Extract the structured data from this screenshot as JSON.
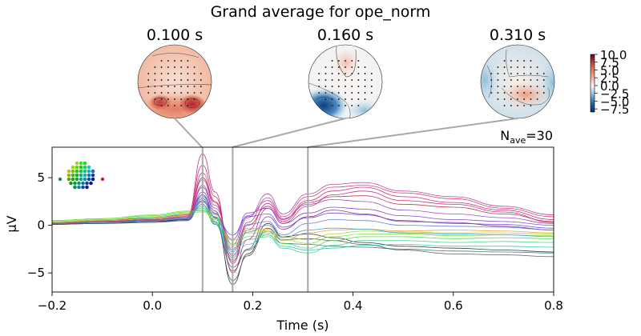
{
  "figure": {
    "title": "Grand average for ope_norm",
    "nave_label": "N",
    "nave_sub": "ave",
    "nave_value": "=30"
  },
  "topomaps": [
    {
      "time_label": "0.100 s",
      "time": 0.1
    },
    {
      "time_label": "0.160 s",
      "time": 0.16
    },
    {
      "time_label": "0.310 s",
      "time": 0.31
    }
  ],
  "colorbar": {
    "ticks": [
      "10.0",
      "7.5",
      "5.0",
      "2.5",
      "0.0",
      "−2.5",
      "−5.0",
      "−7.5"
    ],
    "colormap": "RdBu_r"
  },
  "colors": {
    "line_magenta": "#c8287a",
    "line_purple": "#7a3fd4",
    "line_green": "#4fd84a",
    "line_cyan": "#2fc6b6",
    "line_dark": "#333333",
    "marker": "#a8a8a8"
  },
  "chart_data": {
    "type": "line",
    "title": "Grand average for ope_norm",
    "xlabel": "Time (s)",
    "ylabel": "µV",
    "xlim": [
      -0.2,
      0.8
    ],
    "ylim": [
      -7,
      8.2
    ],
    "x_ticks": [
      -0.2,
      0.0,
      0.2,
      0.4,
      0.6,
      0.8
    ],
    "x_tick_labels": [
      "−0.2",
      "0.0",
      "0.2",
      "0.4",
      "0.6",
      "0.8"
    ],
    "y_ticks": [
      -5,
      0,
      5
    ],
    "y_tick_labels": [
      "−5",
      "0",
      "5"
    ],
    "grid": false,
    "x": [
      -0.2,
      -0.1,
      0.0,
      0.07,
      0.1,
      0.125,
      0.16,
      0.19,
      0.23,
      0.26,
      0.31,
      0.36,
      0.42,
      0.5,
      0.6,
      0.7,
      0.8
    ],
    "series": [
      {
        "color": "#c8287a",
        "values": [
          0.3,
          0.5,
          0.7,
          1.0,
          7.5,
          3.5,
          -5.0,
          -1.5,
          1.8,
          0.2,
          2.0,
          3.2,
          3.6,
          2.6,
          2.2,
          1.4,
          0.3
        ]
      },
      {
        "color": "#c8287a",
        "values": [
          0.3,
          0.5,
          0.8,
          1.1,
          6.3,
          3.0,
          -4.0,
          -0.5,
          2.3,
          0.6,
          2.6,
          3.6,
          4.0,
          3.0,
          2.4,
          1.6,
          0.6
        ]
      },
      {
        "color": "#d43a6a",
        "values": [
          0.2,
          0.4,
          0.6,
          0.9,
          5.5,
          2.5,
          -3.2,
          0.3,
          2.9,
          0.9,
          3.0,
          4.0,
          4.2,
          3.4,
          2.8,
          1.8,
          0.9
        ]
      },
      {
        "color": "#b33fa0",
        "values": [
          0.2,
          0.4,
          0.6,
          0.8,
          4.8,
          2.1,
          -2.6,
          0.8,
          3.3,
          1.2,
          3.3,
          4.3,
          4.5,
          3.6,
          3.0,
          2.0,
          1.1
        ]
      },
      {
        "color": "#9a45c8",
        "values": [
          0.3,
          0.4,
          0.5,
          0.7,
          4.2,
          1.8,
          -2.0,
          1.0,
          2.6,
          0.7,
          2.2,
          2.7,
          2.5,
          1.6,
          1.2,
          0.8,
          0.2
        ]
      },
      {
        "color": "#7a3fd4",
        "values": [
          0.3,
          0.4,
          0.5,
          0.6,
          3.5,
          1.2,
          -1.5,
          1.3,
          1.8,
          0.2,
          1.3,
          1.9,
          1.7,
          1.0,
          0.6,
          0.4,
          0.0
        ]
      },
      {
        "color": "#6a40e0",
        "values": [
          0.2,
          0.3,
          0.4,
          0.5,
          2.8,
          0.8,
          -1.0,
          0.9,
          1.2,
          -0.2,
          0.8,
          1.3,
          1.1,
          0.5,
          0.2,
          0.1,
          -0.3
        ]
      },
      {
        "color": "#8a2f7a",
        "values": [
          0.1,
          0.3,
          0.5,
          0.7,
          4.0,
          1.5,
          -4.8,
          -2.5,
          0.9,
          -0.4,
          0.9,
          1.6,
          1.2,
          0.4,
          0.3,
          -0.1,
          -0.5
        ]
      },
      {
        "color": "#333333",
        "values": [
          0.1,
          0.2,
          0.4,
          0.6,
          3.2,
          0.8,
          -6.2,
          -3.0,
          0.2,
          -1.2,
          -0.9,
          -1.3,
          -1.8,
          -2.2,
          -2.4,
          -2.6,
          -2.8
        ]
      },
      {
        "color": "#555555",
        "values": [
          0.1,
          0.2,
          0.3,
          0.5,
          2.6,
          0.4,
          -5.8,
          -3.2,
          -0.3,
          -1.5,
          -1.4,
          -1.6,
          -2.0,
          -2.6,
          -3.0,
          -3.1,
          -3.3
        ]
      },
      {
        "color": "#2f7a6a",
        "values": [
          0.2,
          0.3,
          0.5,
          0.7,
          2.2,
          0.1,
          -4.4,
          -2.6,
          -0.6,
          -1.9,
          -2.0,
          -2.2,
          -2.3,
          -2.5,
          -2.7,
          -2.8,
          -2.9
        ]
      },
      {
        "color": "#2fc6b6",
        "values": [
          0.3,
          0.4,
          0.6,
          0.9,
          2.0,
          0.2,
          -3.6,
          -2.0,
          -1.0,
          -2.2,
          -2.6,
          -2.4,
          -2.1,
          -2.0,
          -2.2,
          -2.2,
          -2.3
        ]
      },
      {
        "color": "#3dd08a",
        "values": [
          0.4,
          0.6,
          0.8,
          1.2,
          1.8,
          0.3,
          -3.0,
          -1.5,
          -1.2,
          -2.4,
          -2.9,
          -2.1,
          -1.6,
          -1.6,
          -1.8,
          -1.7,
          -1.8
        ]
      },
      {
        "color": "#4fd84a",
        "values": [
          0.5,
          0.7,
          1.0,
          1.4,
          1.6,
          0.6,
          -2.4,
          -1.2,
          -1.0,
          -1.9,
          -2.4,
          -1.6,
          -1.2,
          -1.2,
          -1.4,
          -1.3,
          -1.4
        ]
      },
      {
        "color": "#7ae23a",
        "values": [
          0.5,
          0.7,
          1.1,
          1.5,
          1.5,
          0.9,
          -2.0,
          -0.8,
          -0.8,
          -1.5,
          -1.9,
          -1.2,
          -0.9,
          -0.9,
          -1.1,
          -1.0,
          -1.1
        ]
      },
      {
        "color": "#a0d830",
        "values": [
          0.4,
          0.6,
          0.9,
          1.3,
          1.4,
          0.7,
          -1.6,
          -0.5,
          -0.6,
          -1.2,
          -1.5,
          -0.9,
          -0.6,
          -0.7,
          -0.8,
          -0.8,
          -0.9
        ]
      },
      {
        "color": "#e6a030",
        "values": [
          0.3,
          0.5,
          0.7,
          1.0,
          2.4,
          1.1,
          -2.2,
          -0.3,
          -0.4,
          -1.6,
          -0.8,
          -0.5,
          -0.4,
          -0.6,
          -0.5,
          -0.6,
          -0.8
        ]
      },
      {
        "color": "#5a7ae8",
        "values": [
          0.2,
          0.4,
          0.6,
          0.8,
          3.0,
          1.3,
          -2.8,
          0.1,
          0.4,
          -1.0,
          0.2,
          0.6,
          0.5,
          0.0,
          -0.1,
          -0.2,
          -0.5
        ]
      },
      {
        "color": "#3a9ae0",
        "values": [
          0.2,
          0.3,
          0.5,
          0.7,
          2.5,
          0.9,
          -3.4,
          -0.7,
          0.0,
          -1.3,
          -0.5,
          -0.3,
          -0.4,
          -0.8,
          -0.9,
          -1.0,
          -1.2
        ]
      },
      {
        "color": "#c03050",
        "values": [
          0.2,
          0.4,
          0.6,
          0.9,
          5.0,
          2.4,
          -3.8,
          0.0,
          2.0,
          0.4,
          2.4,
          3.0,
          3.1,
          2.2,
          1.9,
          1.2,
          0.4
        ]
      }
    ]
  }
}
